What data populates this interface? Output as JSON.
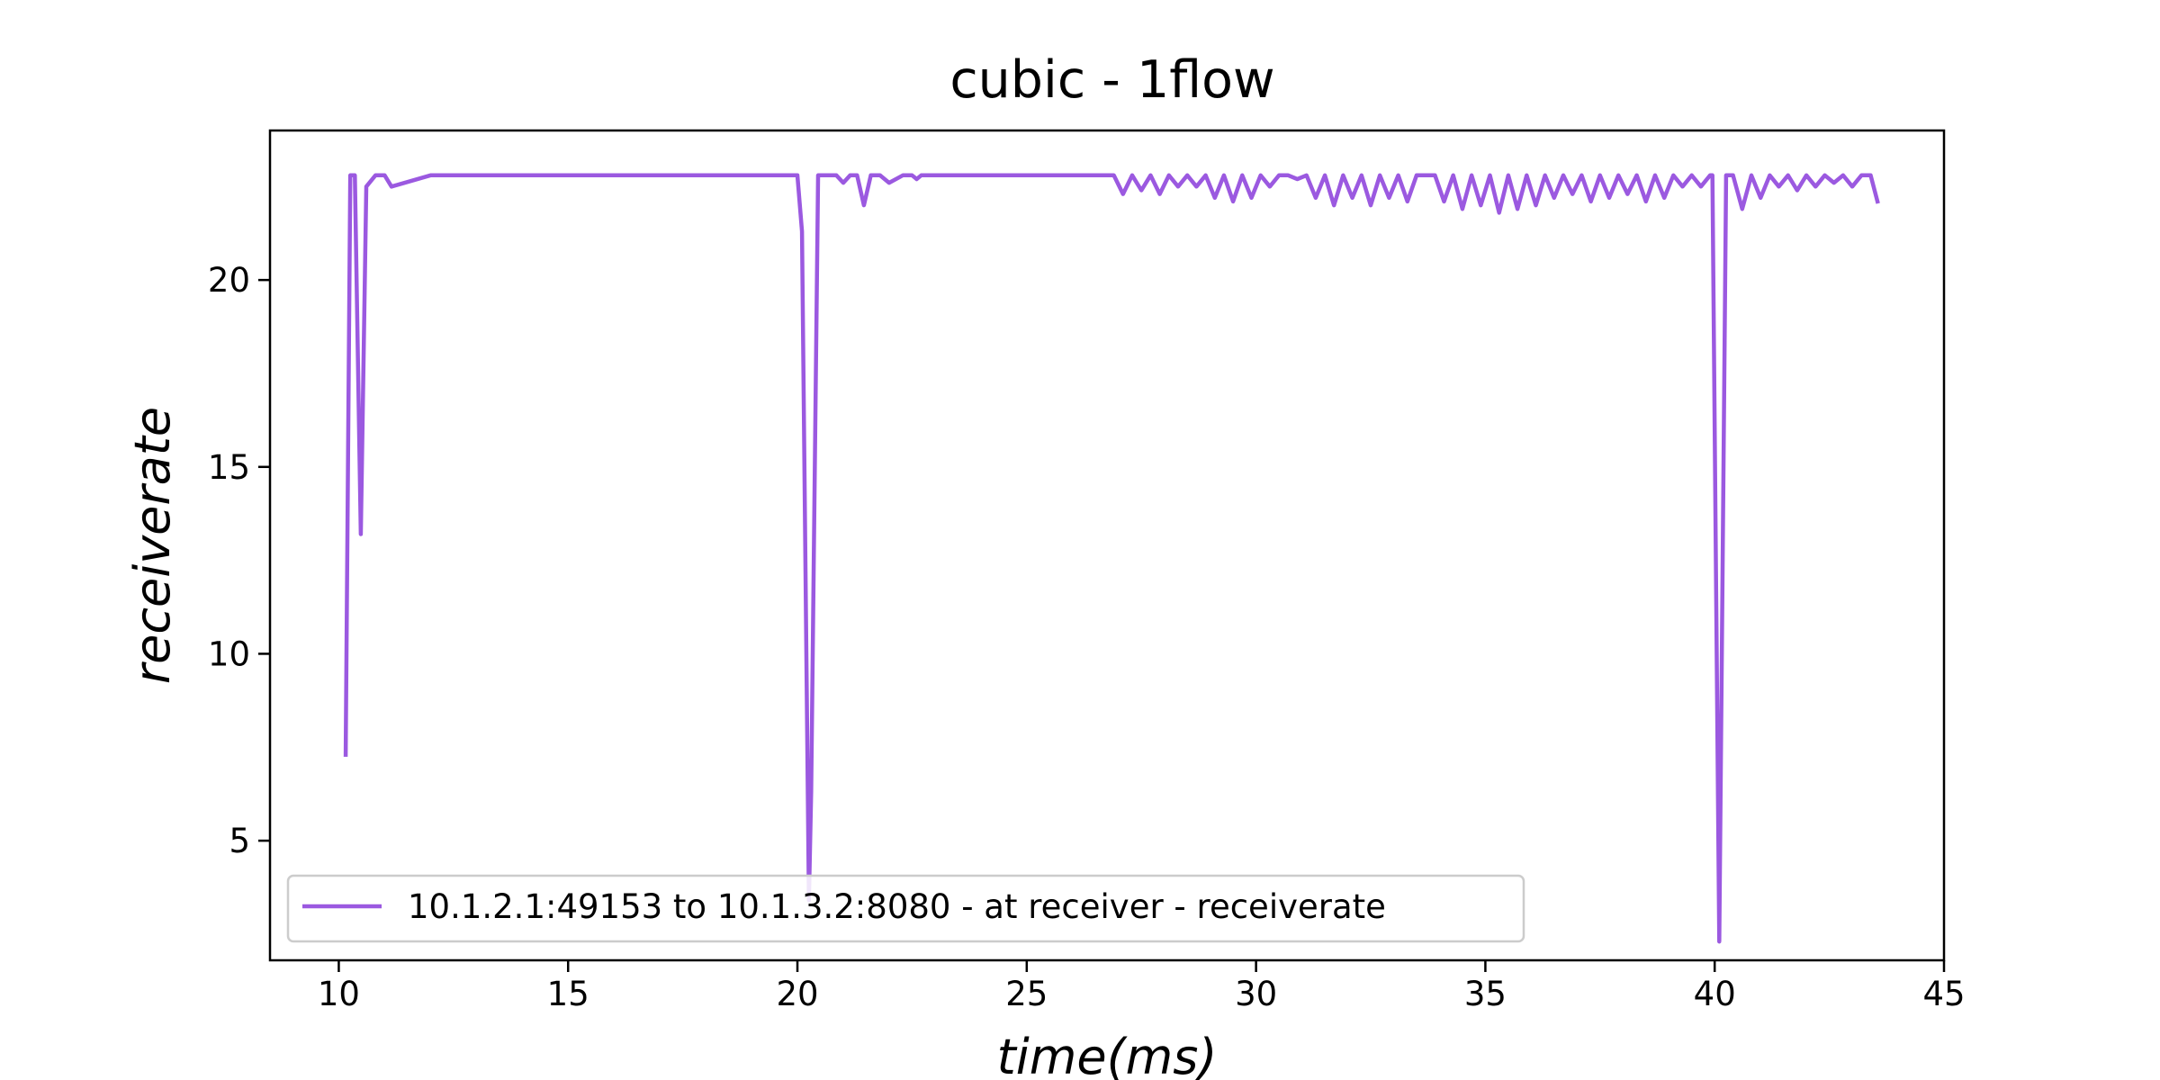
{
  "chart_data": {
    "type": "line",
    "title": "cubic - 1flow",
    "xlabel": "time(ms)",
    "ylabel": "receiverate",
    "xlim": [
      8.5,
      45
    ],
    "ylim": [
      1.8,
      24
    ],
    "xticks": [
      10,
      15,
      20,
      25,
      30,
      35,
      40,
      45
    ],
    "yticks": [
      5,
      10,
      15,
      20
    ],
    "grid": false,
    "legend_position": "lower-left",
    "series": [
      {
        "name": "10.1.2.1:49153 to 10.1.3.2:8080 - at receiver - receiverate",
        "color": "#9b59e0",
        "x": [
          10.15,
          10.25,
          10.35,
          10.48,
          10.6,
          10.8,
          11.0,
          11.15,
          12,
          14,
          16,
          18,
          19.8,
          20.0,
          20.1,
          20.25,
          20.3,
          20.45,
          20.6,
          20.85,
          21.0,
          21.15,
          21.3,
          21.45,
          21.6,
          21.8,
          22.0,
          22.3,
          22.5,
          22.6,
          22.7,
          23,
          25,
          26.5,
          26.9,
          27.1,
          27.3,
          27.5,
          27.7,
          27.9,
          28.1,
          28.3,
          28.5,
          28.7,
          28.9,
          29.1,
          29.3,
          29.5,
          29.7,
          29.9,
          30.1,
          30.3,
          30.5,
          30.7,
          30.9,
          31.1,
          31.3,
          31.5,
          31.7,
          31.9,
          32.1,
          32.3,
          32.5,
          32.7,
          32.9,
          33.1,
          33.3,
          33.5,
          33.7,
          33.9,
          34.1,
          34.3,
          34.5,
          34.7,
          34.9,
          35.1,
          35.3,
          35.5,
          35.7,
          35.9,
          36.1,
          36.3,
          36.5,
          36.7,
          36.9,
          37.1,
          37.3,
          37.5,
          37.7,
          37.9,
          38.1,
          38.3,
          38.5,
          38.7,
          38.9,
          39.1,
          39.3,
          39.5,
          39.7,
          39.9,
          39.95,
          40.1,
          40.25,
          40.4,
          40.6,
          40.8,
          41.0,
          41.2,
          41.4,
          41.6,
          41.8,
          42.0,
          42.2,
          42.4,
          42.6,
          42.8,
          43.0,
          43.2,
          43.4,
          43.55
        ],
        "y": [
          7.3,
          22.8,
          22.8,
          13.2,
          22.5,
          22.8,
          22.8,
          22.5,
          22.8,
          22.8,
          22.8,
          22.8,
          22.8,
          22.8,
          21.3,
          3.4,
          6.3,
          22.8,
          22.8,
          22.8,
          22.6,
          22.8,
          22.8,
          22.0,
          22.8,
          22.8,
          22.6,
          22.8,
          22.8,
          22.7,
          22.8,
          22.8,
          22.8,
          22.8,
          22.8,
          22.3,
          22.8,
          22.4,
          22.8,
          22.3,
          22.8,
          22.5,
          22.8,
          22.5,
          22.8,
          22.2,
          22.8,
          22.1,
          22.8,
          22.2,
          22.8,
          22.5,
          22.8,
          22.8,
          22.7,
          22.8,
          22.2,
          22.8,
          22.0,
          22.8,
          22.2,
          22.8,
          22.0,
          22.8,
          22.2,
          22.8,
          22.1,
          22.8,
          22.8,
          22.8,
          22.1,
          22.8,
          21.9,
          22.8,
          22.0,
          22.8,
          21.8,
          22.8,
          21.9,
          22.8,
          22.0,
          22.8,
          22.2,
          22.8,
          22.3,
          22.8,
          22.1,
          22.8,
          22.2,
          22.8,
          22.3,
          22.8,
          22.1,
          22.8,
          22.2,
          22.8,
          22.5,
          22.8,
          22.5,
          22.8,
          22.8,
          2.3,
          22.8,
          22.8,
          21.9,
          22.8,
          22.2,
          22.8,
          22.5,
          22.8,
          22.4,
          22.8,
          22.5,
          22.8,
          22.6,
          22.8,
          22.5,
          22.8,
          22.8,
          22.1
        ]
      }
    ]
  }
}
